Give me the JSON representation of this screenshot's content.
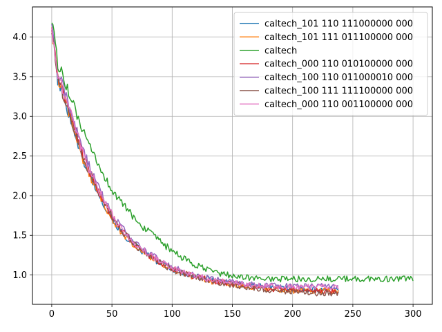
{
  "chart_data": {
    "type": "line",
    "title": "",
    "xlabel": "",
    "ylabel": "",
    "xlim": [
      -16,
      316
    ],
    "ylim": [
      0.63,
      4.38
    ],
    "xticks": [
      0,
      50,
      100,
      150,
      200,
      250,
      300
    ],
    "yticks": [
      1.0,
      1.5,
      2.0,
      2.5,
      3.0,
      3.5,
      4.0
    ],
    "xtick_labels": [
      "0",
      "50",
      "100",
      "150",
      "200",
      "250",
      "300"
    ],
    "ytick_labels": [
      "1.0",
      "1.5",
      "2.0",
      "2.5",
      "3.0",
      "3.5",
      "4.0"
    ],
    "grid": true,
    "legend_position": "top-right",
    "series": [
      {
        "name": "caltech_101 110 111000000 000",
        "color": "#1f77b4",
        "x": [
          0,
          5,
          10,
          15,
          20,
          25,
          30,
          35,
          40,
          45,
          50,
          55,
          60,
          65,
          70,
          75,
          80,
          85,
          90,
          95,
          100,
          110,
          120,
          130,
          140,
          150,
          160,
          170,
          180,
          190,
          200,
          210,
          220,
          230,
          238
        ],
        "y": [
          4.12,
          3.45,
          3.25,
          3.0,
          2.75,
          2.5,
          2.3,
          2.15,
          2.0,
          1.85,
          1.72,
          1.6,
          1.5,
          1.43,
          1.36,
          1.3,
          1.25,
          1.2,
          1.15,
          1.12,
          1.08,
          1.02,
          0.98,
          0.95,
          0.92,
          0.9,
          0.88,
          0.87,
          0.85,
          0.84,
          0.83,
          0.82,
          0.82,
          0.82,
          0.82
        ]
      },
      {
        "name": "caltech_101 111 011100000 000",
        "color": "#ff7f0e",
        "x": [
          0,
          5,
          10,
          15,
          20,
          25,
          30,
          35,
          40,
          45,
          50,
          55,
          60,
          65,
          70,
          75,
          80,
          85,
          90,
          95,
          100,
          110,
          120,
          130,
          140,
          150,
          160,
          170,
          180,
          190,
          200,
          210,
          220,
          230,
          238
        ],
        "y": [
          4.1,
          3.5,
          3.25,
          3.0,
          2.75,
          2.5,
          2.3,
          2.15,
          2.0,
          1.85,
          1.72,
          1.6,
          1.5,
          1.43,
          1.37,
          1.31,
          1.25,
          1.2,
          1.15,
          1.11,
          1.07,
          1.01,
          0.97,
          0.93,
          0.9,
          0.88,
          0.86,
          0.84,
          0.82,
          0.81,
          0.8,
          0.8,
          0.8,
          0.8,
          0.8
        ]
      },
      {
        "name": "caltech",
        "color": "#2ca02c",
        "x": [
          0,
          5,
          10,
          15,
          20,
          25,
          30,
          35,
          40,
          45,
          50,
          55,
          60,
          65,
          70,
          75,
          80,
          85,
          90,
          95,
          100,
          110,
          120,
          130,
          140,
          150,
          160,
          170,
          180,
          190,
          200,
          210,
          220,
          230,
          240,
          250,
          260,
          270,
          280,
          290,
          300
        ],
        "y": [
          4.25,
          3.65,
          3.5,
          3.25,
          3.05,
          2.85,
          2.65,
          2.5,
          2.35,
          2.2,
          2.08,
          1.97,
          1.87,
          1.78,
          1.7,
          1.62,
          1.55,
          1.48,
          1.42,
          1.36,
          1.3,
          1.2,
          1.12,
          1.06,
          1.02,
          0.99,
          0.97,
          0.96,
          0.95,
          0.95,
          0.95,
          0.95,
          0.95,
          0.95,
          0.95,
          0.95,
          0.95,
          0.95,
          0.95,
          0.95,
          0.95
        ]
      },
      {
        "name": "caltech_000 110 010100000 000",
        "color": "#d62728",
        "x": [
          0,
          5,
          10,
          15,
          20,
          25,
          30,
          35,
          40,
          45,
          50,
          55,
          60,
          65,
          70,
          75,
          80,
          85,
          90,
          95,
          100,
          110,
          120,
          130,
          140,
          150,
          160,
          170,
          180,
          190,
          200,
          210,
          220,
          230,
          238
        ],
        "y": [
          4.1,
          3.5,
          3.28,
          3.05,
          2.8,
          2.55,
          2.35,
          2.18,
          2.02,
          1.88,
          1.75,
          1.63,
          1.53,
          1.45,
          1.38,
          1.32,
          1.26,
          1.21,
          1.16,
          1.12,
          1.08,
          1.02,
          0.98,
          0.94,
          0.91,
          0.89,
          0.87,
          0.85,
          0.83,
          0.82,
          0.81,
          0.8,
          0.8,
          0.8,
          0.8
        ]
      },
      {
        "name": "caltech_100 110 011000010 000",
        "color": "#9467bd",
        "x": [
          0,
          5,
          10,
          15,
          20,
          25,
          30,
          35,
          40,
          45,
          50,
          55,
          60,
          65,
          70,
          75,
          80,
          85,
          90,
          95,
          100,
          110,
          120,
          130,
          140,
          150,
          160,
          170,
          180,
          190,
          200,
          210,
          220,
          230,
          238
        ],
        "y": [
          4.12,
          3.55,
          3.35,
          3.1,
          2.85,
          2.62,
          2.42,
          2.23,
          2.06,
          1.91,
          1.78,
          1.66,
          1.56,
          1.47,
          1.4,
          1.34,
          1.28,
          1.23,
          1.18,
          1.14,
          1.1,
          1.04,
          0.99,
          0.96,
          0.93,
          0.91,
          0.89,
          0.88,
          0.87,
          0.86,
          0.86,
          0.86,
          0.86,
          0.86,
          0.86
        ]
      },
      {
        "name": "caltech_100 111 111100000 000",
        "color": "#8c564b",
        "x": [
          0,
          5,
          10,
          15,
          20,
          25,
          30,
          35,
          40,
          45,
          50,
          55,
          60,
          65,
          70,
          75,
          80,
          85,
          90,
          95,
          100,
          110,
          120,
          130,
          140,
          150,
          160,
          170,
          180,
          190,
          200,
          210,
          220,
          230,
          238
        ],
        "y": [
          4.1,
          3.48,
          3.26,
          3.02,
          2.78,
          2.54,
          2.34,
          2.17,
          2.01,
          1.87,
          1.74,
          1.62,
          1.52,
          1.44,
          1.37,
          1.31,
          1.25,
          1.2,
          1.15,
          1.11,
          1.07,
          1.01,
          0.97,
          0.93,
          0.9,
          0.87,
          0.85,
          0.83,
          0.81,
          0.8,
          0.79,
          0.78,
          0.77,
          0.77,
          0.77
        ]
      },
      {
        "name": "caltech_000 110 001100000 000",
        "color": "#e377c2",
        "x": [
          0,
          5,
          10,
          15,
          20,
          25,
          30,
          35,
          40,
          45,
          50,
          55,
          60,
          65,
          70,
          75,
          80,
          85,
          90,
          95,
          100,
          110,
          120,
          130,
          140,
          150,
          160,
          170,
          180,
          190,
          200,
          210,
          220,
          230,
          238
        ],
        "y": [
          4.11,
          3.52,
          3.3,
          3.06,
          2.82,
          2.58,
          2.38,
          2.2,
          2.04,
          1.89,
          1.76,
          1.64,
          1.54,
          1.46,
          1.39,
          1.33,
          1.27,
          1.22,
          1.17,
          1.13,
          1.09,
          1.03,
          0.99,
          0.95,
          0.92,
          0.9,
          0.88,
          0.87,
          0.86,
          0.85,
          0.85,
          0.85,
          0.85,
          0.85,
          0.85
        ]
      }
    ]
  }
}
